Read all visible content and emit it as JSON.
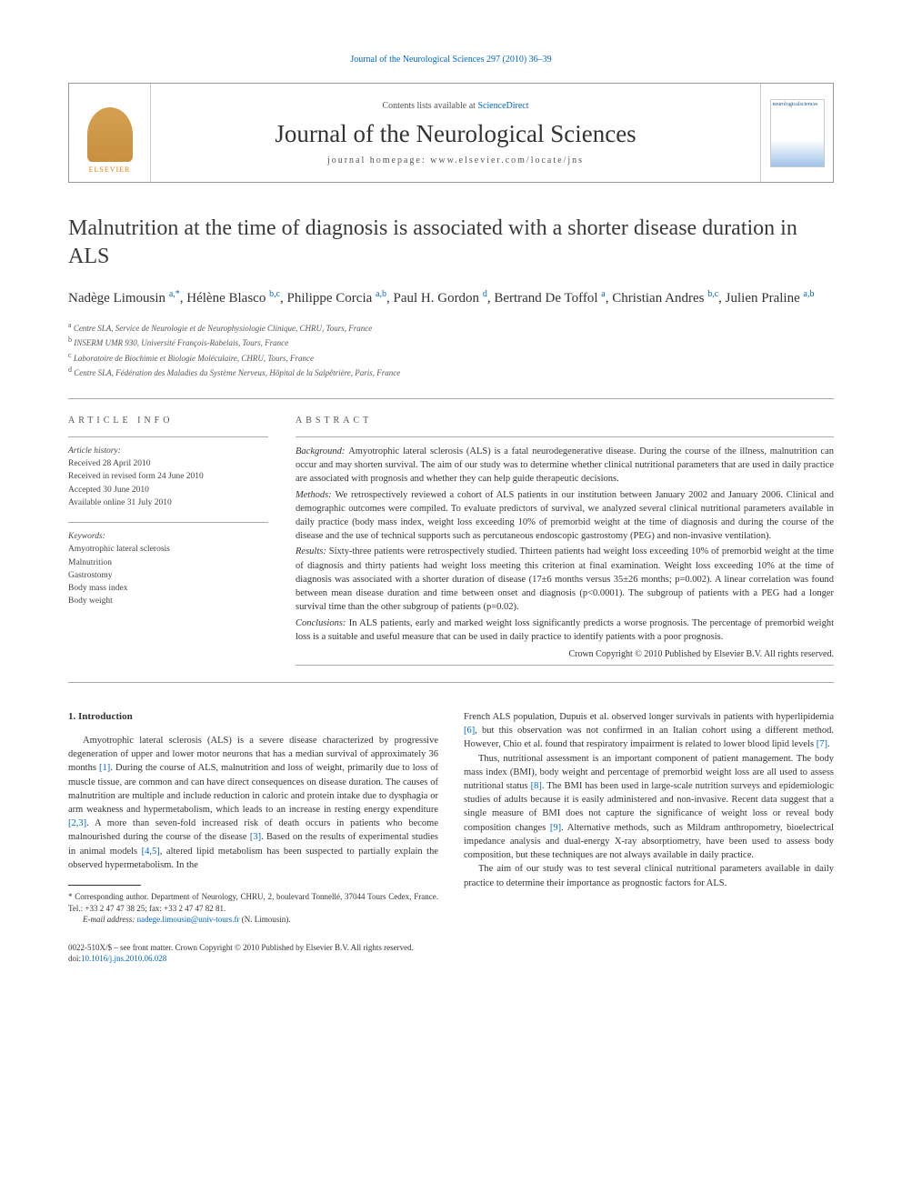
{
  "top_link": "Journal of the Neurological Sciences 297 (2010) 36–39",
  "header": {
    "contents_prefix": "Contents lists available at ",
    "contents_link": "ScienceDirect",
    "journal_name": "Journal of the Neurological Sciences",
    "homepage": "journal homepage: www.elsevier.com/locate/jns",
    "publisher_name": "ELSEVIER",
    "cover_label": "neurologicalsciences"
  },
  "title": "Malnutrition at the time of diagnosis is associated with a shorter disease duration in ALS",
  "authors_html": "Nadège Limousin <sup>a,*</sup>, Hélène Blasco <sup>b,c</sup>, Philippe Corcia <sup>a,b</sup>, Paul H. Gordon <sup>d</sup>, Bertrand De Toffol <sup>a</sup>, Christian Andres <sup>b,c</sup>, Julien Praline <sup>a,b</sup>",
  "affiliations": [
    "a Centre SLA, Service de Neurologie et de Neurophysiologie Clinique, CHRU, Tours, France",
    "b INSERM UMR 930, Université François-Rabelais, Tours, France",
    "c Laboratoire de Biochimie et Biologie Moléculaire, CHRU, Tours, France",
    "d Centre SLA, Fédération des Maladies du Système Nerveux, Hôpital de la Salpêtrière, Paris, France"
  ],
  "article_info": {
    "heading": "ARTICLE INFO",
    "history_label": "Article history:",
    "history": [
      "Received 28 April 2010",
      "Received in revised form 24 June 2010",
      "Accepted 30 June 2010",
      "Available online 31 July 2010"
    ],
    "keywords_label": "Keywords:",
    "keywords": [
      "Amyotrophic lateral sclerosis",
      "Malnutrition",
      "Gastrostomy",
      "Body mass index",
      "Body weight"
    ]
  },
  "abstract": {
    "heading": "ABSTRACT",
    "sections": [
      {
        "label": "Background:",
        "text": "Amyotrophic lateral sclerosis (ALS) is a fatal neurodegenerative disease. During the course of the illness, malnutrition can occur and may shorten survival. The aim of our study was to determine whether clinical nutritional parameters that are used in daily practice are associated with prognosis and whether they can help guide therapeutic decisions."
      },
      {
        "label": "Methods:",
        "text": "We retrospectively reviewed a cohort of ALS patients in our institution between January 2002 and January 2006. Clinical and demographic outcomes were compiled. To evaluate predictors of survival, we analyzed several clinical nutritional parameters available in daily practice (body mass index, weight loss exceeding 10% of premorbid weight at the time of diagnosis and during the course of the disease and the use of technical supports such as percutaneous endoscopic gastrostomy (PEG) and non-invasive ventilation)."
      },
      {
        "label": "Results:",
        "text": "Sixty-three patients were retrospectively studied. Thirteen patients had weight loss exceeding 10% of premorbid weight at the time of diagnosis and thirty patients had weight loss meeting this criterion at final examination. Weight loss exceeding 10% at the time of diagnosis was associated with a shorter duration of disease (17±6 months versus 35±26 months; p=0.002). A linear correlation was found between mean disease duration and time between onset and diagnosis (p<0.0001). The subgroup of patients with a PEG had a longer survival time than the other subgroup of patients (p=0.02)."
      },
      {
        "label": "Conclusions:",
        "text": "In ALS patients, early and marked weight loss significantly predicts a worse prognosis. The percentage of premorbid weight loss is a suitable and useful measure that can be used in daily practice to identify patients with a poor prognosis."
      }
    ],
    "copyright": "Crown Copyright © 2010 Published by Elsevier B.V. All rights reserved."
  },
  "body": {
    "heading": "1. Introduction",
    "col1_p1": "Amyotrophic lateral sclerosis (ALS) is a severe disease characterized by progressive degeneration of upper and lower motor neurons that has a median survival of approximately 36 months [1]. During the course of ALS, malnutrition and loss of weight, primarily due to loss of muscle tissue, are common and can have direct consequences on disease duration. The causes of malnutrition are multiple and include reduction in caloric and protein intake due to dysphagia or arm weakness and hypermetabolism, which leads to an increase in resting energy expenditure [2,3]. A more than seven-fold increased risk of death occurs in patients who become malnourished during the course of the disease [3]. Based on the results of experimental studies in animal models [4,5], altered lipid metabolism has been suspected to partially explain the observed hypermetabolism. In the",
    "col2_p1": "French ALS population, Dupuis et al. observed longer survivals in patients with hyperlipidemia [6], but this observation was not confirmed in an Italian cohort using a different method. However, Chio et al. found that respiratory impairment is related to lower blood lipid levels [7].",
    "col2_p2": "Thus, nutritional assessment is an important component of patient management. The body mass index (BMI), body weight and percentage of premorbid weight loss are all used to assess nutritional status [8]. The BMI has been used in large-scale nutrition surveys and epidemiologic studies of adults because it is easily administered and non-invasive. Recent data suggest that a single measure of BMI does not capture the significance of weight loss or reveal body composition changes [9]. Alternative methods, such as Mildram anthropometry, bioelectrical impedance analysis and dual-energy X-ray absorptiometry, have been used to assess body composition, but these techniques are not always available in daily practice.",
    "col2_p3": "The aim of our study was to test several clinical nutritional parameters available in daily practice to determine their importance as prognostic factors for ALS.",
    "citations": {
      "c1": "[1]",
      "c23": "[2,3]",
      "c3": "[3]",
      "c45": "[4,5]",
      "c6": "[6]",
      "c7": "[7]",
      "c8": "[8]",
      "c9": "[9]"
    }
  },
  "footnote": {
    "corr": "* Corresponding author. Department of Neurology, CHRU, 2, boulevard Tonnellé, 37044 Tours Cedex, France. Tel.: +33 2 47 47 38 25; fax: +33 2 47 47 82 81.",
    "email_label": "E-mail address:",
    "email": "nadege.limousin@univ-tours.fr",
    "email_suffix": "(N. Limousin)."
  },
  "bottom": {
    "line1": "0022-510X/$ – see front matter. Crown Copyright © 2010 Published by Elsevier B.V. All rights reserved.",
    "doi_label": "doi:",
    "doi": "10.1016/j.jns.2010.06.028"
  },
  "colors": {
    "link": "#0066cc",
    "text": "#333333",
    "muted": "#555555",
    "rule": "#aaaaaa",
    "elsevier": "#e67e00"
  }
}
